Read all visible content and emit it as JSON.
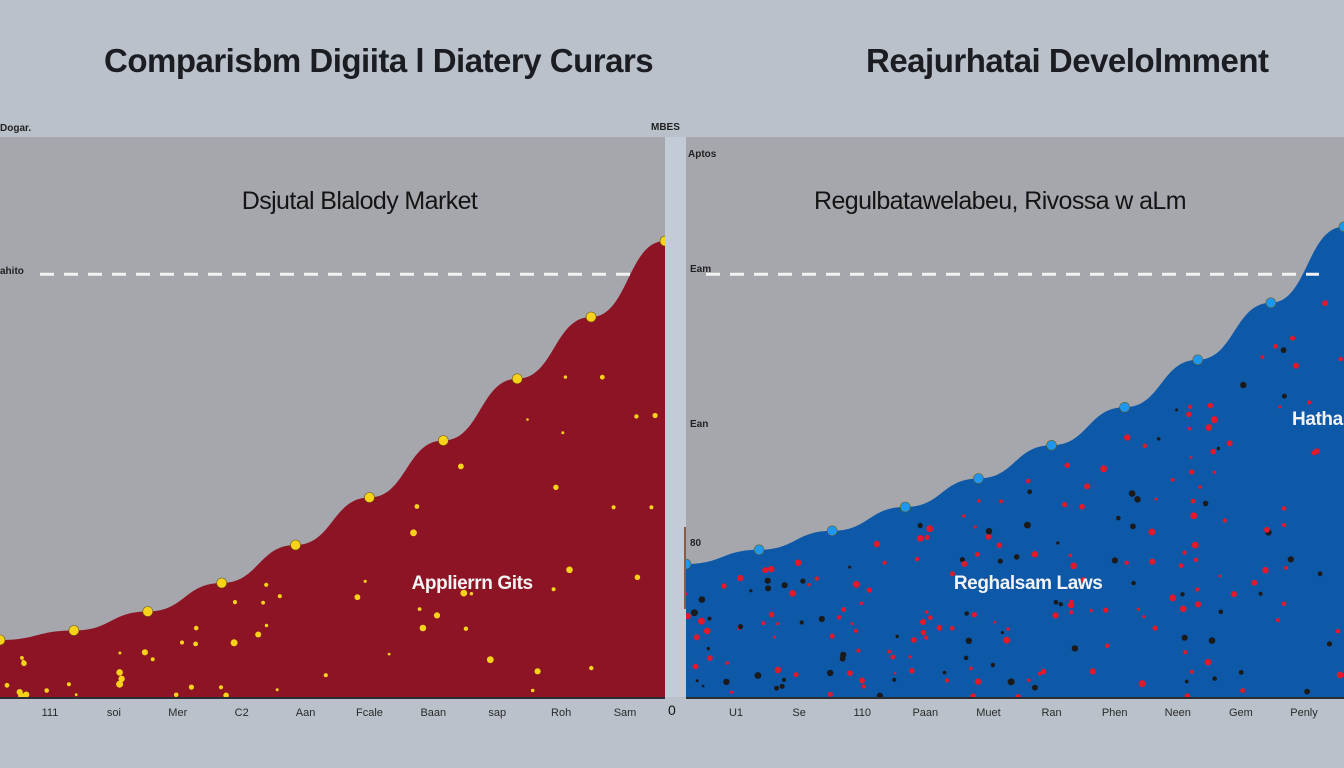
{
  "titles": {
    "left": "Comparisbm Digiita l Diatery Curars",
    "right": "Reajurhatai Develolmment"
  },
  "left_panel": {
    "corner_label": "Dogar.",
    "side_label": "ahito",
    "zero_label": "0"
  },
  "right_panel": {
    "corner_label": "MBES",
    "tick_labels": [
      "Aptos",
      "Eam",
      "Ean",
      "80"
    ],
    "side_label": "Hatha"
  },
  "colors": {
    "left_fill": "#8c1424",
    "right_fill": "#0e58a8",
    "left_points": "#f6d21a",
    "right_points": "#1d97ef",
    "scatter_red": "#e0192b",
    "scatter_dark": "#1a1a1a",
    "panel_bg": "#a6a7ad",
    "threshold": "#f2f2f2"
  },
  "chart_data": [
    {
      "type": "area",
      "title": "Dsjutal Blalody Market",
      "annotation": "Applierrn Gits",
      "categories": [
        "111",
        "soi",
        "Mer",
        "C2",
        "Aan",
        "Fcale",
        "Baan",
        "sap",
        "Roh",
        "Sam"
      ],
      "series": [
        {
          "values": [
            12,
            14,
            18,
            24,
            32,
            42,
            54,
            67,
            80,
            96
          ]
        }
      ],
      "reference_line": 89,
      "ylim": [
        0,
        100
      ],
      "grid": false,
      "legend": "none"
    },
    {
      "type": "area",
      "title": "Regulbatawelabeu, Rivossa w aLm",
      "annotation": "Reghalsam Laws",
      "categories": [
        "U1",
        "Se",
        "110",
        "Paan",
        "Muet",
        "Ran",
        "Phen",
        "Neen",
        "Gem",
        "Penly"
      ],
      "series": [
        {
          "values": [
            28,
            31,
            35,
            40,
            46,
            53,
            61,
            71,
            83,
            99
          ]
        }
      ],
      "reference_line": 89,
      "ylim": [
        0,
        100
      ],
      "grid": false,
      "legend": "none"
    }
  ]
}
